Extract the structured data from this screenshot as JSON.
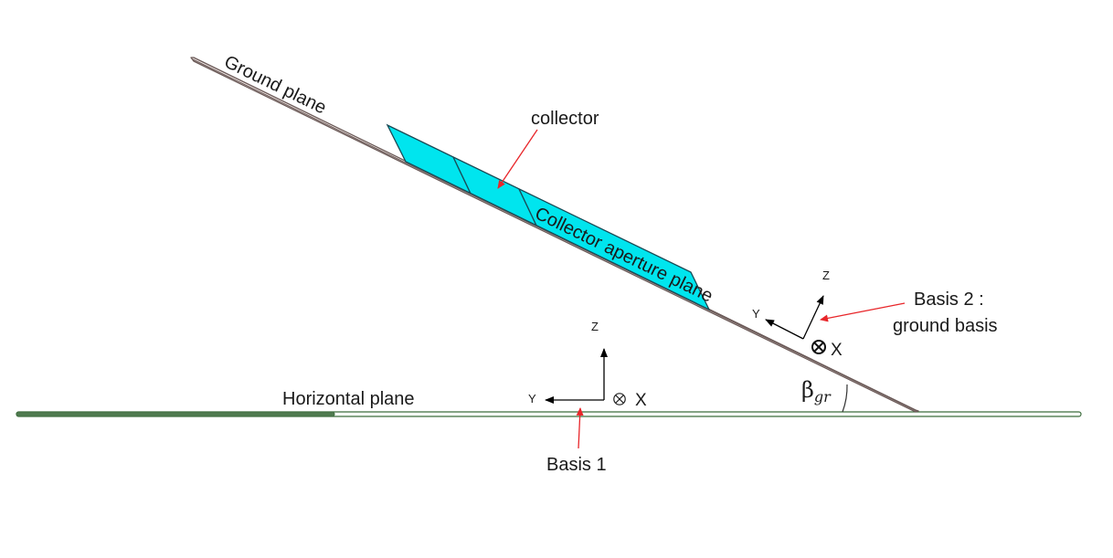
{
  "labels": {
    "ground_plane": "Ground plane",
    "collector": "collector",
    "collector_aperture_plane": "Collector aperture plane",
    "horizontal_plane": "Horizontal plane",
    "basis1": "Basis 1",
    "basis2_line1": "Basis 2 :",
    "basis2_line2": "ground basis",
    "angle_symbol": "β",
    "angle_subscript": "gr"
  },
  "basis1": {
    "axis_z": "Z",
    "axis_y": "Y",
    "axis_x": "X"
  },
  "basis2": {
    "axis_z": "Z",
    "axis_y": "Y",
    "axis_x": "X"
  },
  "colors": {
    "collector_fill": "#00E5EE",
    "collector_stroke": "#1a4a55",
    "ground_plane_fill": "#f2e9e6",
    "ground_plane_stroke": "#6b5a58",
    "horizontal_plane_stroke": "#3f6e3f",
    "pointer_arrow": "#e8262a",
    "axis_arrow": "#000000"
  }
}
